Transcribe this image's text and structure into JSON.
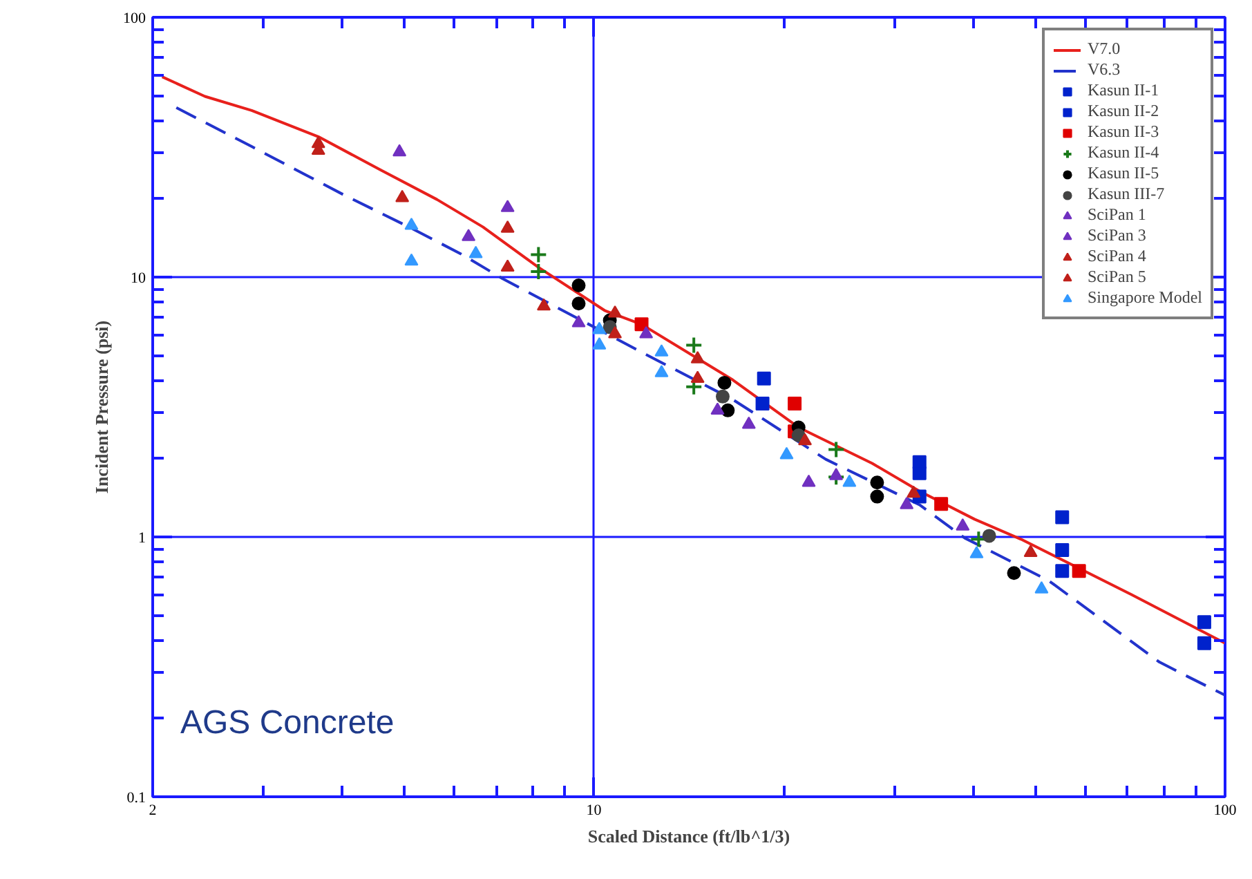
{
  "chart_data": {
    "type": "scatter",
    "xlabel": "Scaled Distance (ft/lb^1/3)",
    "ylabel": "Incident Pressure (psi)",
    "annotations": [
      "AGS Concrete"
    ],
    "log": "xy",
    "grid": true,
    "legend": "top right",
    "xlim": [
      2,
      100
    ],
    "ylim": [
      0.1,
      100
    ],
    "xticks": [
      2,
      {
        "value": 3,
        "label": null
      },
      {
        "value": 4,
        "label": null
      },
      {
        "value": 5,
        "label": null
      },
      {
        "value": 6,
        "label": null
      },
      {
        "value": 7,
        "label": null
      },
      {
        "value": 8,
        "label": null
      },
      {
        "value": 9,
        "label": null
      },
      10,
      {
        "value": 20,
        "label": null
      },
      {
        "value": 30,
        "label": null
      },
      {
        "value": 40,
        "label": null
      },
      {
        "value": 50,
        "label": null
      },
      {
        "value": 60,
        "label": null
      },
      {
        "value": 70,
        "label": null
      },
      {
        "value": 80,
        "label": null
      },
      {
        "value": 90,
        "label": null
      },
      100
    ],
    "yticks": [
      0.1,
      {
        "value": 0.2,
        "label": null
      },
      {
        "value": 0.3,
        "label": null
      },
      {
        "value": 0.4,
        "label": null
      },
      {
        "value": 0.5,
        "label": null
      },
      {
        "value": 0.6,
        "label": null
      },
      {
        "value": 0.7,
        "label": null
      },
      {
        "value": 0.8,
        "label": null
      },
      {
        "value": 0.9,
        "label": null
      },
      1,
      {
        "value": 2,
        "label": null
      },
      {
        "value": 3,
        "label": null
      },
      {
        "value": 4,
        "label": null
      },
      {
        "value": 5,
        "label": null
      },
      {
        "value": 6,
        "label": null
      },
      {
        "value": 7,
        "label": null
      },
      {
        "value": 8,
        "label": null
      },
      {
        "value": 9,
        "label": null
      },
      10,
      {
        "value": 20,
        "label": null
      },
      {
        "value": 30,
        "label": null
      },
      {
        "value": 40,
        "label": null
      },
      {
        "value": 50,
        "label": null
      },
      {
        "value": 60,
        "label": null
      },
      {
        "value": 70,
        "label": null
      },
      {
        "value": 80,
        "label": null
      },
      {
        "value": 90,
        "label": null
      },
      100
    ],
    "series": [
      {
        "name": "V7.0",
        "type": "line",
        "line_style": "solid",
        "color": "#e8201c",
        "x": [
          2.07,
          2.42,
          2.87,
          3.66,
          4.6,
          5.64,
          6.67,
          8.17,
          10.4,
          11.9,
          16.6,
          21.1,
          27.6,
          32.8,
          40.1,
          47.5,
          71.1,
          100
        ],
        "values": [
          59,
          49.6,
          43.8,
          34.7,
          25.8,
          19.9,
          15.6,
          10.9,
          7.44,
          6.58,
          4.02,
          2.64,
          1.92,
          1.5,
          1.17,
          0.98,
          0.6,
          0.39
        ]
      },
      {
        "name": "V6.3",
        "type": "line",
        "line_style": "dashed",
        "color": "#2233cc",
        "x": [
          2.18,
          2.87,
          4.02,
          5.09,
          6.15,
          7.16,
          9.36,
          11.9,
          16.6,
          23.3,
          32.8,
          38.7,
          52.5,
          78.7,
          87.3,
          100
        ],
        "values": [
          44.9,
          31.8,
          20.7,
          15.6,
          12.3,
          9.88,
          7.0,
          5.14,
          3.38,
          1.99,
          1.33,
          0.99,
          0.68,
          0.33,
          0.29,
          0.246
        ]
      },
      {
        "name": "Kasun II-1",
        "marker": "square",
        "color": "#0022cc",
        "x": [
          18.6,
          32.8,
          32.8,
          55.2,
          55.2,
          92.7,
          92.7
        ],
        "values": [
          4.07,
          1.94,
          1.76,
          1.19,
          0.89,
          0.47,
          0.39
        ]
      },
      {
        "name": "Kasun II-2",
        "marker": "square",
        "color": "#0022cc",
        "x": [
          18.5,
          32.8,
          55.2
        ],
        "values": [
          3.26,
          1.43,
          0.74
        ]
      },
      {
        "name": "Kasun II-3",
        "marker": "square",
        "color": "#e00000",
        "x": [
          11.9,
          20.8,
          20.8,
          35.5,
          58.7
        ],
        "values": [
          6.58,
          3.26,
          2.55,
          1.34,
          0.74
        ]
      },
      {
        "name": "Kasun II-4",
        "marker": "cross",
        "color": "#1a7a1a",
        "x": [
          8.17,
          8.17,
          14.4,
          14.4,
          24.2,
          24.2,
          40.7
        ],
        "values": [
          12.2,
          10.5,
          5.47,
          3.78,
          2.17,
          1.7,
          0.98
        ]
      },
      {
        "name": "Kasun II-5",
        "marker": "circle",
        "color": "#000000",
        "x": [
          9.46,
          9.46,
          10.6,
          16.1,
          16.3,
          21.1,
          28.1,
          28.1,
          46.3
        ],
        "values": [
          9.29,
          7.91,
          6.82,
          3.92,
          3.07,
          2.64,
          1.62,
          1.43,
          0.726
        ]
      },
      {
        "name": "Kasun III-7",
        "marker": "circle",
        "color": "#444444",
        "x": [
          10.6,
          16.0,
          21.1,
          42.3
        ],
        "values": [
          6.42,
          3.47,
          2.46,
          1.01
        ]
      },
      {
        "name": "SciPan 1",
        "marker": "triangle",
        "color": "#7030c0",
        "x": [
          4.92,
          7.3,
          6.33,
          9.46,
          15.7,
          21.9
        ],
        "values": [
          30.3,
          18.5,
          14.3,
          6.66,
          3.07,
          1.62
        ]
      },
      {
        "name": "SciPan 3",
        "marker": "triangle",
        "color": "#7030c0",
        "x": [
          12.1,
          17.6,
          24.2,
          31.3,
          38.4
        ],
        "values": [
          6.04,
          2.71,
          1.72,
          1.33,
          1.1
        ]
      },
      {
        "name": "SciPan 4",
        "marker": "triangle",
        "color": "#c0201a",
        "x": [
          3.66,
          4.97,
          7.3,
          10.8,
          14.6,
          21.6,
          49.2
        ],
        "values": [
          32.6,
          20.2,
          15.4,
          7.26,
          4.84,
          2.34,
          0.87
        ]
      },
      {
        "name": "SciPan 5",
        "marker": "triangle",
        "color": "#c0201a",
        "x": [
          3.66,
          7.3,
          8.33,
          10.8,
          14.6,
          32.1
        ],
        "values": [
          30.7,
          10.9,
          7.73,
          6.04,
          4.07,
          1.47
        ]
      },
      {
        "name": "Singapore Model",
        "marker": "triangle",
        "color": "#3399ff",
        "x": [
          5.14,
          5.14,
          6.5,
          10.2,
          10.2,
          12.8,
          12.8,
          20.2,
          25.4,
          40.4,
          51.2
        ],
        "values": [
          15.8,
          11.5,
          12.3,
          6.27,
          5.47,
          5.14,
          4.28,
          2.07,
          1.62,
          0.86,
          0.63
        ]
      }
    ]
  }
}
